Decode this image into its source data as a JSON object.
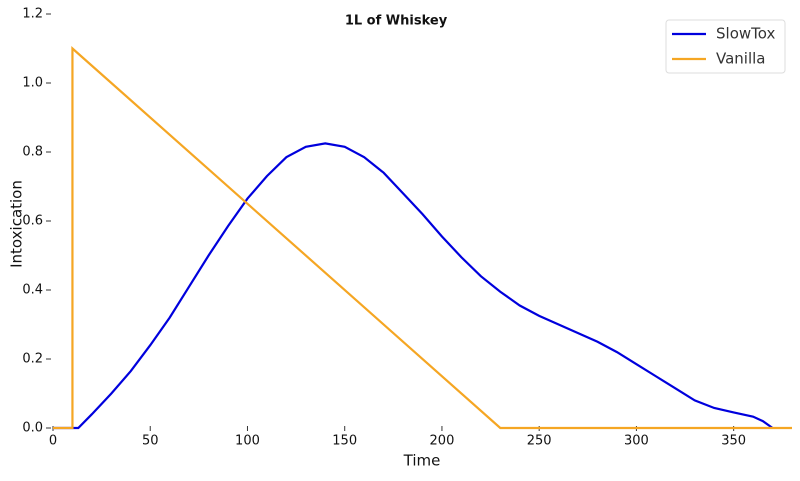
{
  "chart_data": {
    "type": "line",
    "title": "1L of Whiskey",
    "xlabel": "Time",
    "ylabel": "Intoxication",
    "xlim": [
      0,
      380
    ],
    "ylim": [
      0,
      1.2
    ],
    "xticks": [
      0,
      50,
      100,
      150,
      200,
      250,
      300,
      350
    ],
    "yticks": [
      {
        "value": 0,
        "label": "0.0"
      },
      {
        "value": 0.2,
        "label": "0.2"
      },
      {
        "value": 0.4,
        "label": "0.4"
      },
      {
        "value": 0.6,
        "label": "0.6"
      },
      {
        "value": 0.8,
        "label": "0.8"
      },
      {
        "value": 1.0,
        "label": "1.0"
      },
      {
        "value": 1.2,
        "label": "1.2"
      }
    ],
    "grid": false,
    "legend": "upper right",
    "series": [
      {
        "name": "SlowTox",
        "color": "#0000dd",
        "x": [
          0,
          13,
          20,
          30,
          40,
          50,
          60,
          70,
          80,
          90,
          100,
          110,
          120,
          130,
          140,
          150,
          160,
          170,
          180,
          190,
          200,
          210,
          220,
          230,
          240,
          250,
          260,
          270,
          280,
          290,
          300,
          310,
          320,
          330,
          340,
          350,
          360,
          365,
          370
        ],
        "values": [
          0,
          0,
          0.04,
          0.1,
          0.165,
          0.24,
          0.32,
          0.41,
          0.5,
          0.585,
          0.665,
          0.73,
          0.785,
          0.815,
          0.825,
          0.815,
          0.785,
          0.74,
          0.68,
          0.62,
          0.555,
          0.495,
          0.44,
          0.395,
          0.355,
          0.325,
          0.3,
          0.275,
          0.25,
          0.22,
          0.185,
          0.15,
          0.115,
          0.08,
          0.058,
          0.045,
          0.033,
          0.02,
          0
        ]
      },
      {
        "name": "Vanilla",
        "color": "#f5a623",
        "x": [
          0,
          10,
          10,
          230,
          380
        ],
        "values": [
          0,
          0,
          1.1,
          0,
          0
        ]
      }
    ]
  }
}
